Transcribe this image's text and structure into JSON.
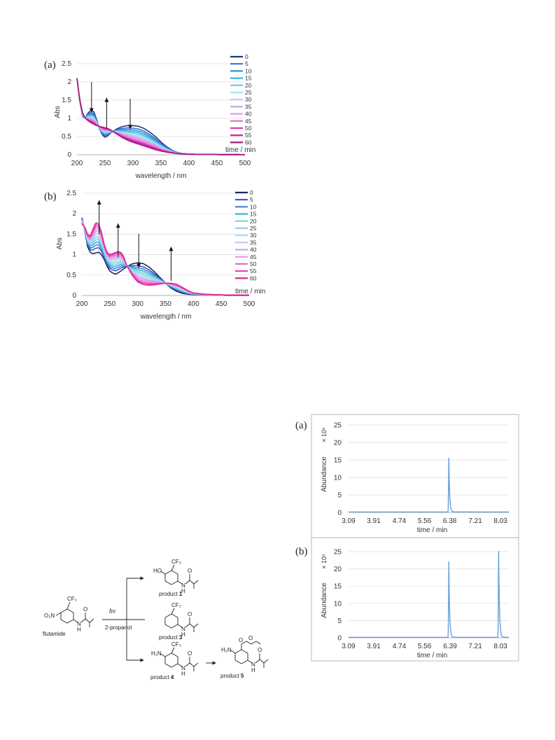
{
  "chart_data": [
    {
      "type": "line",
      "panel_label": "(a)",
      "xlabel": "wavelength / nm",
      "ylabel": "Abs",
      "xlim": [
        200,
        500
      ],
      "ylim": [
        0,
        2.5
      ],
      "xticks": [
        200,
        250,
        300,
        350,
        400,
        450,
        500
      ],
      "yticks": [
        0,
        0.5,
        1,
        1.5,
        2,
        2.5
      ],
      "legend_title": "time / min",
      "legend_entries": [
        "0",
        "5",
        "10",
        "15",
        "20",
        "25",
        "30",
        "35",
        "40",
        "45",
        "50",
        "55",
        "60"
      ],
      "series_colors": [
        "#1f3c7a",
        "#3b6fd8",
        "#2e93d6",
        "#3bb3e4",
        "#5fcbe8",
        "#a8e2f2",
        "#c9c6ee",
        "#c8a3ee",
        "#e79ae6",
        "#e46ccf",
        "#de3fbc",
        "#cc1c9e",
        "#a11d7b"
      ],
      "arrows": [
        {
          "x": 226,
          "dir": "down"
        },
        {
          "x": 253,
          "dir": "up"
        },
        {
          "x": 295,
          "dir": "down"
        }
      ],
      "profiles": {
        "wl": [
          200,
          205,
          210,
          215,
          220,
          225,
          230,
          235,
          240,
          245,
          250,
          255,
          260,
          270,
          280,
          290,
          300,
          310,
          320,
          330,
          340,
          350,
          360,
          370,
          380,
          390,
          400,
          420,
          440,
          460,
          480,
          500
        ],
        "start": [
          2.1,
          1.45,
          1.05,
          1.0,
          1.15,
          1.22,
          1.18,
          0.98,
          0.72,
          0.55,
          0.48,
          0.52,
          0.6,
          0.7,
          0.77,
          0.8,
          0.8,
          0.78,
          0.72,
          0.62,
          0.5,
          0.35,
          0.22,
          0.12,
          0.06,
          0.03,
          0.02,
          0.01,
          0.01,
          0.01,
          0.01,
          0.0
        ],
        "end": [
          2.1,
          1.5,
          1.15,
          1.0,
          0.93,
          0.88,
          0.84,
          0.8,
          0.78,
          0.76,
          0.74,
          0.72,
          0.68,
          0.58,
          0.48,
          0.4,
          0.34,
          0.29,
          0.24,
          0.19,
          0.14,
          0.1,
          0.07,
          0.05,
          0.03,
          0.02,
          0.01,
          0.01,
          0.01,
          0.0,
          0.0,
          0.0
        ]
      }
    },
    {
      "type": "line",
      "panel_label": "(b)",
      "xlabel": "wavelength / nm",
      "ylabel": "Abs",
      "xlim": [
        200,
        500
      ],
      "ylim": [
        0,
        2.5
      ],
      "xticks": [
        200,
        250,
        300,
        350,
        400,
        450,
        500
      ],
      "yticks": [
        0,
        0.5,
        1,
        1.5,
        2,
        2.5
      ],
      "legend_title": "time / min",
      "legend_entries": [
        "0",
        "5",
        "10",
        "15",
        "20",
        "25",
        "30",
        "35",
        "40",
        "45",
        "50",
        "55",
        "60"
      ],
      "series_colors": [
        "#1f2a5c",
        "#3b4fd0",
        "#4f86c8",
        "#36b6d8",
        "#6fd6ea",
        "#8fcde8",
        "#b7dcef",
        "#c9c6ee",
        "#c8a3ee",
        "#e79ae6",
        "#e46ccf",
        "#de3fbc",
        "#e0268f"
      ],
      "arrows": [
        {
          "x": 231,
          "dir": "up"
        },
        {
          "x": 265,
          "dir": "up"
        },
        {
          "x": 302,
          "dir": "down"
        },
        {
          "x": 360,
          "dir": "up"
        }
      ],
      "profiles": {
        "wl": [
          200,
          205,
          210,
          215,
          220,
          225,
          230,
          235,
          240,
          245,
          250,
          255,
          260,
          265,
          270,
          275,
          280,
          290,
          300,
          310,
          320,
          330,
          340,
          350,
          360,
          370,
          380,
          390,
          400,
          420,
          440,
          460,
          480,
          500
        ],
        "start": [
          1.9,
          1.6,
          1.2,
          1.05,
          1.02,
          1.04,
          1.06,
          1.0,
          0.88,
          0.72,
          0.6,
          0.55,
          0.52,
          0.55,
          0.6,
          0.65,
          0.7,
          0.77,
          0.8,
          0.78,
          0.7,
          0.58,
          0.44,
          0.3,
          0.18,
          0.1,
          0.05,
          0.03,
          0.02,
          0.01,
          0.01,
          0.0,
          0.0,
          0.0
        ],
        "end": [
          1.75,
          1.68,
          1.5,
          1.45,
          1.62,
          1.78,
          1.75,
          1.55,
          1.25,
          1.05,
          1.0,
          1.02,
          1.05,
          1.07,
          1.05,
          0.95,
          0.75,
          0.5,
          0.33,
          0.27,
          0.25,
          0.26,
          0.28,
          0.3,
          0.3,
          0.27,
          0.2,
          0.12,
          0.06,
          0.03,
          0.02,
          0.01,
          0.01,
          0.01
        ]
      }
    },
    {
      "type": "line",
      "panel_label": "(a)",
      "xlabel": "time / min",
      "ylabel": "Abundance",
      "y_multiplier": "× 10⁶",
      "xlim": [
        3.09,
        8.3
      ],
      "ylim": [
        0,
        25
      ],
      "xticks": [
        "3.09",
        "3.91",
        "4.74",
        "5.56",
        "6.38",
        "7.21",
        "8.03"
      ],
      "yticks": [
        0,
        5,
        10,
        15,
        20,
        25
      ],
      "color": "#6a9fd8",
      "peaks": [
        {
          "x": 6.35,
          "y": 15.5
        }
      ]
    },
    {
      "type": "line",
      "panel_label": "(b)",
      "xlabel": "time / min",
      "ylabel": "Abundance",
      "y_multiplier": "× 10⁶",
      "xlim": [
        3.09,
        8.3
      ],
      "ylim": [
        0,
        25
      ],
      "xticks": [
        "3.09",
        "3.91",
        "4.74",
        "5.56",
        "6.39",
        "7.21",
        "8.03"
      ],
      "yticks": [
        0,
        5,
        10,
        15,
        20,
        25
      ],
      "color": "#6a9fd8",
      "peaks": [
        {
          "x": 6.35,
          "y": 22.0
        },
        {
          "x": 7.97,
          "y": 25.0
        }
      ]
    }
  ],
  "scheme": {
    "flutamide_label": "flutamide",
    "substituent_cf3": "CF₃",
    "substituent_no2": "O₂N",
    "substituent_h2n": "H₂N",
    "substituent_ho": "HO",
    "amide_o": "O",
    "amide_n": "N",
    "amide_h": "H",
    "hv": "hν",
    "solvent": "2-propanol",
    "product_word": "product",
    "products": [
      "1",
      "3",
      "4",
      "5"
    ]
  }
}
